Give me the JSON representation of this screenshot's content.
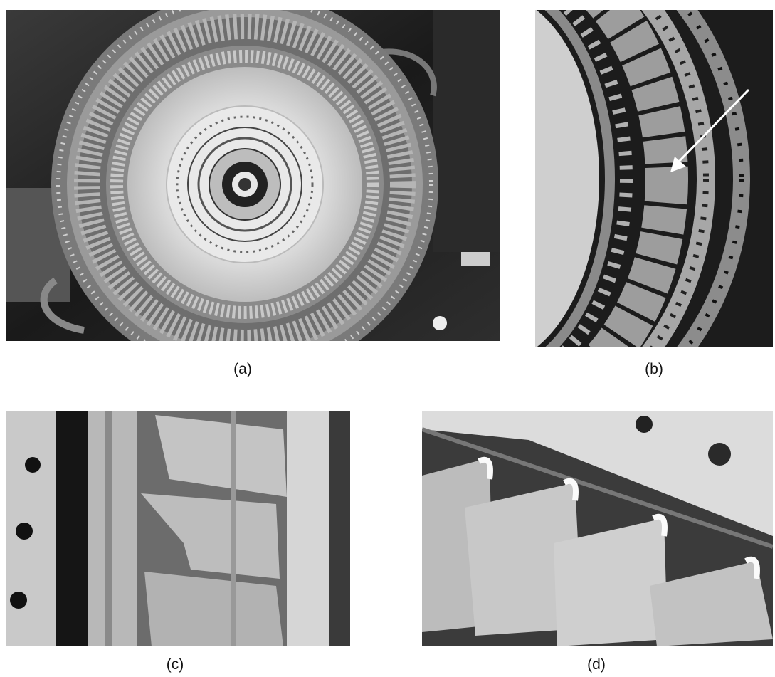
{
  "figure": {
    "panels": [
      {
        "label": "(a)",
        "subject": "turbine-stage-full-view"
      },
      {
        "label": "(b)",
        "subject": "vane-ring-closeup-with-arrow"
      },
      {
        "label": "(c)",
        "subject": "damaged-blades-side-view"
      },
      {
        "label": "(d)",
        "subject": "blade-tips-closeup"
      }
    ]
  }
}
